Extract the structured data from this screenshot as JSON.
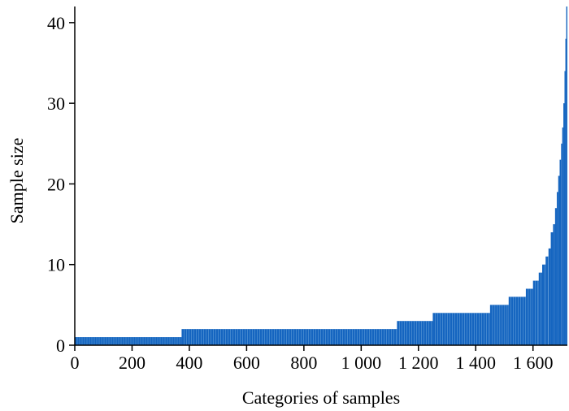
{
  "chart_data": {
    "type": "bar",
    "xlabel": "Categories of samples",
    "ylabel": "Sample size",
    "xlim": [
      0,
      1720
    ],
    "ylim": [
      0,
      42
    ],
    "x_ticks": [
      0,
      200,
      400,
      600,
      800,
      1000,
      1200,
      1400,
      1600
    ],
    "x_tick_labels": [
      "0",
      "200",
      "400",
      "600",
      "800",
      "1 000",
      "1 200",
      "1 400",
      "1 600"
    ],
    "y_ticks": [
      0,
      10,
      20,
      30,
      40
    ],
    "y_tick_labels": [
      "0",
      "10",
      "20",
      "30",
      "40"
    ],
    "bar_color": "#1565c0",
    "bar_edge_color": "#6fa8dc",
    "grid": false,
    "segments": [
      {
        "x_start": 0,
        "x_end": 373,
        "value": 1
      },
      {
        "x_start": 373,
        "x_end": 1125,
        "value": 2
      },
      {
        "x_start": 1125,
        "x_end": 1250,
        "value": 3
      },
      {
        "x_start": 1250,
        "x_end": 1450,
        "value": 4
      },
      {
        "x_start": 1450,
        "x_end": 1515,
        "value": 5
      },
      {
        "x_start": 1515,
        "x_end": 1575,
        "value": 6
      },
      {
        "x_start": 1575,
        "x_end": 1600,
        "value": 7
      },
      {
        "x_start": 1600,
        "x_end": 1620,
        "value": 8
      },
      {
        "x_start": 1620,
        "x_end": 1632,
        "value": 9
      },
      {
        "x_start": 1632,
        "x_end": 1644,
        "value": 10
      },
      {
        "x_start": 1644,
        "x_end": 1654,
        "value": 11
      },
      {
        "x_start": 1654,
        "x_end": 1662,
        "value": 12
      },
      {
        "x_start": 1662,
        "x_end": 1670,
        "value": 14
      },
      {
        "x_start": 1670,
        "x_end": 1677,
        "value": 15
      },
      {
        "x_start": 1677,
        "x_end": 1683,
        "value": 17
      },
      {
        "x_start": 1683,
        "x_end": 1688,
        "value": 19
      },
      {
        "x_start": 1688,
        "x_end": 1693,
        "value": 21
      },
      {
        "x_start": 1693,
        "x_end": 1698,
        "value": 23
      },
      {
        "x_start": 1698,
        "x_end": 1702,
        "value": 25
      },
      {
        "x_start": 1702,
        "x_end": 1706,
        "value": 27
      },
      {
        "x_start": 1706,
        "x_end": 1710,
        "value": 30
      },
      {
        "x_start": 1710,
        "x_end": 1713,
        "value": 34
      },
      {
        "x_start": 1713,
        "x_end": 1716,
        "value": 38
      },
      {
        "x_start": 1716,
        "x_end": 1720,
        "value": 42
      }
    ]
  }
}
